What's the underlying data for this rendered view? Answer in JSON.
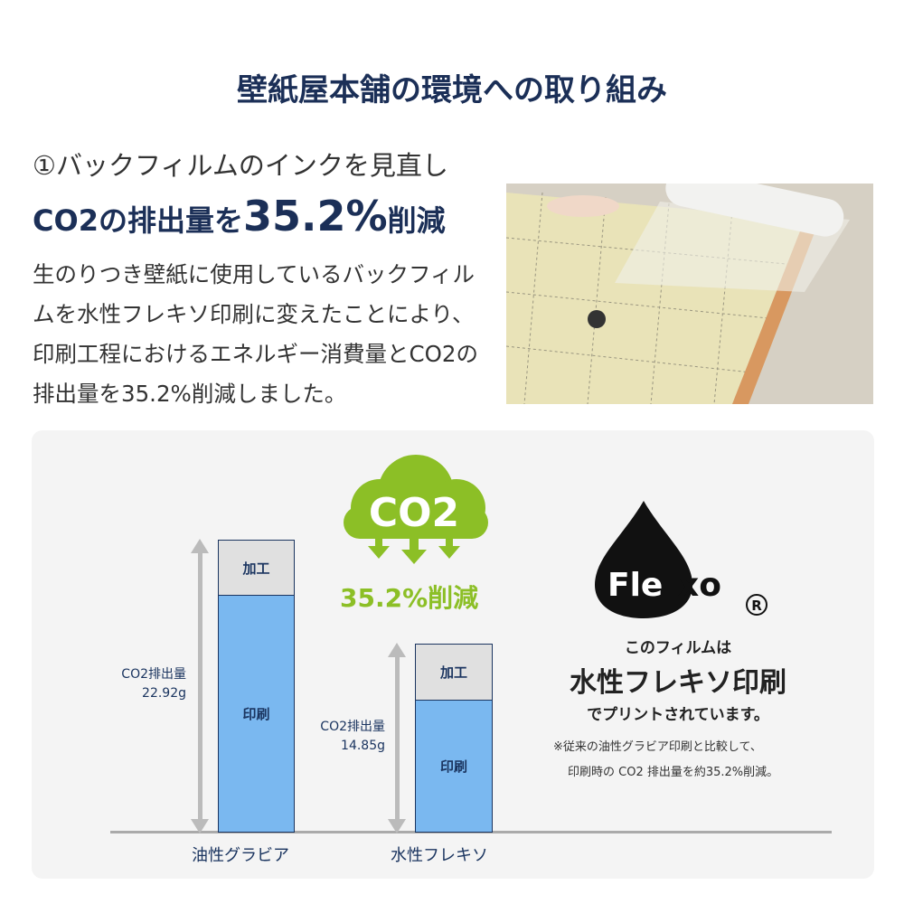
{
  "title": "壁紙屋本舗の環境への取り組み",
  "section": {
    "heading": "①バックフィルムのインクを見直し",
    "subheading_prefix": "CO2の排出量を",
    "subheading_value": "35.2%",
    "subheading_suffix": "削減",
    "paragraph": "生のりつき壁紙に使用しているバックフィルムを水性フレキソ印刷に変えたことにより、印刷工程におけるエネルギー消費量とCO2の排出量を35.2%削減しました。"
  },
  "infographic": {
    "cloud_text": "CO2",
    "reduction_text": "35.2%削減",
    "logo_text": "Flexo",
    "registered_mark": "®",
    "line1": "このフィルムは",
    "line2": "水性フレキソ印刷",
    "line3": "でプリントされています。",
    "note1": "※従来の油性グラビア印刷と比較して、",
    "note2": "印刷時の CO2 排出量を約35.2%削減。",
    "colors": {
      "navy": "#1b3560",
      "green": "#8cbf26",
      "bar_blue": "#7ab8f0",
      "bar_gray": "#e0e0e0"
    }
  },
  "chart_data": {
    "type": "bar",
    "stacked": true,
    "categories": [
      "油性グラビア",
      "水性フレキソ"
    ],
    "segment_labels": [
      "印刷",
      "加工"
    ],
    "totals_labels": [
      "CO2排出量\n22.92g",
      "CO2排出量\n14.85g"
    ],
    "total_label_line1": "CO2排出量",
    "total_values_text": [
      "22.92g",
      "14.85g"
    ],
    "totals": [
      22.92,
      14.85
    ]
  }
}
